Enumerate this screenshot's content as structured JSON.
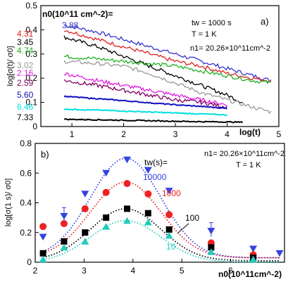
{
  "chart_data": [
    {
      "id": "a",
      "type": "line",
      "panel_label": "a)",
      "ylabel": "log[σ(t)/ σ0]",
      "xlabel": "log(t)",
      "xlim": [
        0.4,
        5
      ],
      "ylim": [
        0,
        0.5
      ],
      "xticks": [
        1,
        2,
        3,
        4,
        5
      ],
      "yticks": [
        0,
        0.1,
        0.2,
        0.3,
        0.4,
        0.5
      ],
      "legend_title": "n0(10^11 cm^-2)=",
      "annotations": [
        "tw = 1000 s",
        "T = 1 K",
        "n1= 20.26×10^11cm^-2"
      ],
      "series": [
        {
          "name": "3.88",
          "color": "#3333cc",
          "x": [
            0.85,
            1.5,
            2.0,
            2.5,
            3.0,
            3.5,
            4.0,
            4.5,
            4.85
          ],
          "y": [
            0.42,
            0.39,
            0.36,
            0.33,
            0.3,
            0.27,
            0.24,
            0.21,
            0.19
          ]
        },
        {
          "name": "4.31",
          "color": "#e02020",
          "x": [
            0.85,
            1.5,
            2.0,
            2.5,
            3.0,
            3.5,
            4.0,
            4.5,
            4.85
          ],
          "y": [
            0.4,
            0.36,
            0.33,
            0.3,
            0.27,
            0.25,
            0.22,
            0.2,
            0.19
          ]
        },
        {
          "name": "3.45",
          "color": "#000000",
          "x": [
            0.85,
            1.5,
            2.0,
            2.5,
            3.0,
            3.5,
            4.0,
            4.3
          ],
          "y": [
            0.37,
            0.33,
            0.29,
            0.25,
            0.21,
            0.17,
            0.13,
            0.1
          ]
        },
        {
          "name": "4.74",
          "color": "#20b020",
          "x": [
            0.85,
            1.5,
            2.0,
            2.5,
            3.0,
            3.5,
            4.0,
            4.5,
            4.85
          ],
          "y": [
            0.29,
            0.28,
            0.27,
            0.26,
            0.25,
            0.23,
            0.21,
            0.19,
            0.18
          ]
        },
        {
          "name": "3.02",
          "color": "#999999",
          "x": [
            0.85,
            1.5,
            2.0,
            2.5,
            3.0,
            3.5,
            4.0,
            4.5,
            4.85
          ],
          "y": [
            0.27,
            0.26,
            0.25,
            0.22,
            0.18,
            0.14,
            0.11,
            0.08,
            0.06
          ]
        },
        {
          "name": "2.16",
          "color": "#e020e0",
          "x": [
            0.85,
            1.5,
            2.0,
            2.5,
            3.0,
            3.5,
            4.0
          ],
          "y": [
            0.22,
            0.19,
            0.17,
            0.15,
            0.13,
            0.11,
            0.09
          ]
        },
        {
          "name": "2.59",
          "color": "#800060",
          "x": [
            0.85,
            1.5,
            2.0,
            2.5,
            3.0,
            3.5,
            4.0
          ],
          "y": [
            0.19,
            0.17,
            0.15,
            0.13,
            0.11,
            0.1,
            0.08
          ]
        },
        {
          "name": "5.60",
          "color": "#1010c0",
          "x": [
            0.85,
            1.5,
            2.0,
            2.5,
            3.0,
            3.5,
            4.0
          ],
          "y": [
            0.125,
            0.115,
            0.107,
            0.098,
            0.09,
            0.083,
            0.075
          ]
        },
        {
          "name": "6.46",
          "color": "#00e0e0",
          "x": [
            0.85,
            1.5,
            2.0,
            2.5,
            3.0,
            3.5,
            4.0
          ],
          "y": [
            0.072,
            0.068,
            0.064,
            0.06,
            0.056,
            0.052,
            0.048
          ]
        },
        {
          "name": "7.33",
          "color": "#000000",
          "x": [
            0.85,
            1.5,
            2.0,
            2.5,
            3.0,
            3.5,
            4.0,
            4.3
          ],
          "y": [
            0.03,
            0.028,
            0.026,
            0.024,
            0.022,
            0.02,
            0.019,
            0.018
          ]
        }
      ]
    },
    {
      "id": "b",
      "type": "scatter",
      "panel_label": "b)",
      "ylabel": "log[σ(1 s)/ σ0]",
      "xlabel": "n0(10^11cm^-2)",
      "xlim": [
        2,
        7.1
      ],
      "ylim": [
        0,
        0.8
      ],
      "xticks": [
        2,
        3,
        4,
        5,
        6
      ],
      "yticks": [
        0,
        0.2,
        0.4,
        0.6,
        0.8
      ],
      "legend_title": "tw(s)=",
      "annotations": [
        "n1= 20.26×10^11cm^-2",
        "T = 1 K"
      ],
      "series": [
        {
          "name": "10000",
          "color": "#3344dd",
          "marker": "triangle-down",
          "x": [
            2.16,
            2.59,
            3.02,
            3.45,
            3.88,
            4.31,
            4.74,
            5.6,
            6.46,
            7.0
          ],
          "y": [
            0.17,
            0.31,
            0.46,
            0.6,
            0.69,
            0.62,
            0.48,
            0.21,
            0.09,
            0.06
          ]
        },
        {
          "name": "1000",
          "color": "#ee2222",
          "marker": "circle",
          "x": [
            2.16,
            2.59,
            3.02,
            3.45,
            3.88,
            4.31,
            4.74,
            5.6,
            6.46
          ],
          "y": [
            0.24,
            0.26,
            0.36,
            0.47,
            0.53,
            0.46,
            0.32,
            0.13,
            0.05
          ]
        },
        {
          "name": "100",
          "color": "#000000",
          "marker": "square",
          "x": [
            2.16,
            2.59,
            3.02,
            3.45,
            3.88,
            4.31,
            4.74,
            5.6,
            6.46
          ],
          "y": [
            0.06,
            0.14,
            0.2,
            0.3,
            0.36,
            0.33,
            0.22,
            0.1,
            0.03
          ]
        },
        {
          "name": "10",
          "color": "#22ccbb",
          "marker": "triangle-up",
          "x": [
            2.16,
            2.59,
            3.02,
            3.45,
            3.88,
            4.31,
            4.74,
            5.6,
            6.46
          ],
          "y": [
            0.02,
            0.1,
            0.14,
            0.24,
            0.28,
            0.27,
            0.18,
            0.07,
            0.02
          ]
        }
      ]
    }
  ]
}
